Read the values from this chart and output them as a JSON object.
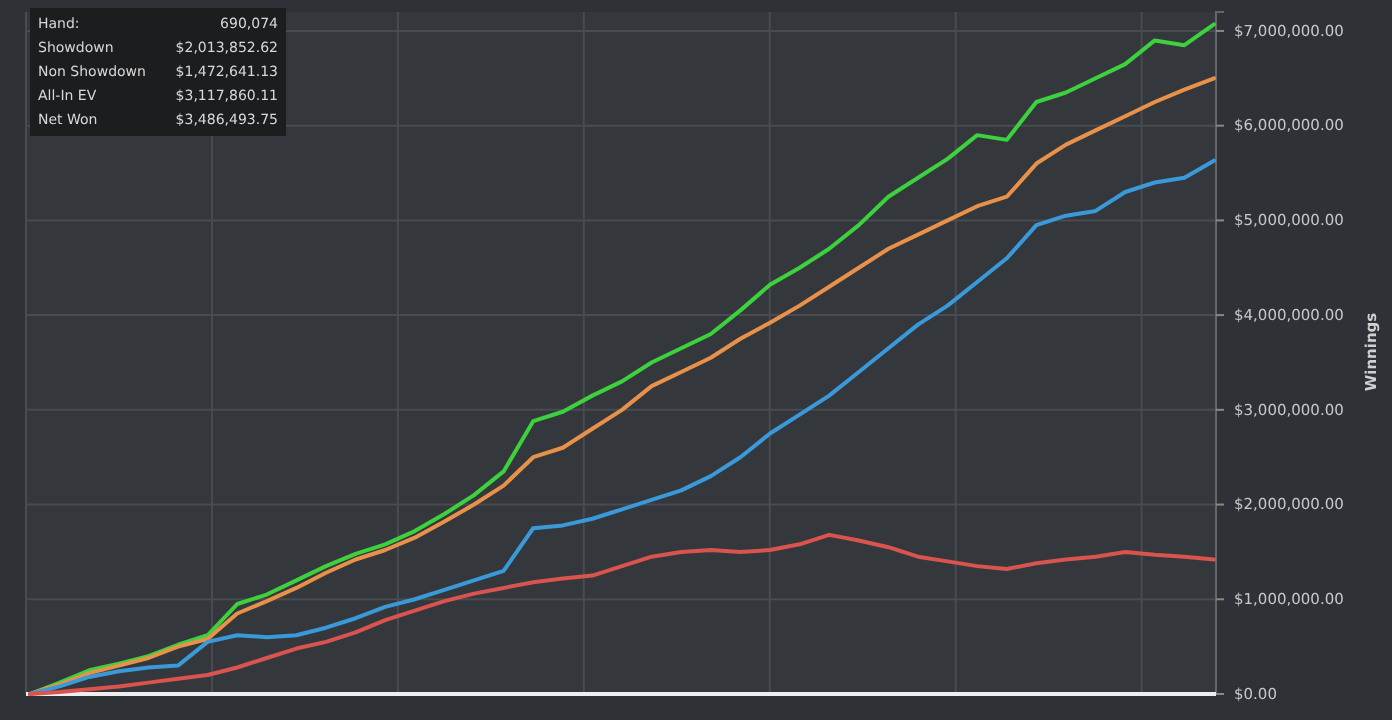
{
  "chart_data": {
    "type": "line",
    "ylabel": "Winnings",
    "grid": true,
    "categories": [
      null,
      null,
      null,
      null,
      null,
      null,
      null,
      null,
      null,
      null,
      null,
      null,
      null,
      null,
      null,
      null,
      null,
      null,
      null,
      null,
      null,
      null,
      null,
      null,
      null,
      null,
      null,
      null,
      null,
      null,
      null,
      null,
      null,
      null,
      null,
      null,
      null,
      null,
      null,
      null,
      null
    ],
    "ylim": [
      0,
      7200000
    ],
    "yticks": [
      {
        "value": 0,
        "label": "$0.00"
      },
      {
        "value": 1000000,
        "label": "$1,000,000.00"
      },
      {
        "value": 2000000,
        "label": "$2,000,000.00"
      },
      {
        "value": 3000000,
        "label": "$3,000,000.00"
      },
      {
        "value": 4000000,
        "label": "$4,000,000.00"
      },
      {
        "value": 5000000,
        "label": "$5,000,000.00"
      },
      {
        "value": 6000000,
        "label": "$6,000,000.00"
      },
      {
        "value": 7000000,
        "label": "$7,000,000.00"
      }
    ],
    "annotations": [
      "Hand:",
      "690,074",
      "Showdown",
      "$2,013,852.62",
      "Non Showdown",
      "$1,472,641.13",
      "All-In EV",
      "$3,117,860.11",
      "Net Won",
      "$3,486,493.75"
    ],
    "series": [
      {
        "color": "#3dd13d",
        "values": [
          0,
          120000,
          250000,
          320000,
          400000,
          520000,
          620000,
          950000,
          1050000,
          1200000,
          1350000,
          1480000,
          1580000,
          1720000,
          1900000,
          2100000,
          2350000,
          2880000,
          2980000,
          3150000,
          3300000,
          3500000,
          3650000,
          3800000,
          4050000,
          4320000,
          4500000,
          4700000,
          4950000,
          5250000,
          5450000,
          5650000,
          5900000,
          5850000,
          6250000,
          6350000,
          6500000,
          6650000,
          6900000,
          6850000,
          7070000
        ]
      },
      {
        "color": "#e8914a",
        "values": [
          0,
          100000,
          220000,
          300000,
          380000,
          500000,
          580000,
          850000,
          980000,
          1120000,
          1280000,
          1420000,
          1520000,
          1650000,
          1820000,
          2000000,
          2200000,
          2500000,
          2600000,
          2800000,
          3000000,
          3250000,
          3400000,
          3550000,
          3750000,
          3920000,
          4100000,
          4300000,
          4500000,
          4700000,
          4850000,
          5000000,
          5150000,
          5250000,
          5600000,
          5800000,
          5950000,
          6100000,
          6250000,
          6380000,
          6500000
        ]
      },
      {
        "color": "#3a9ad9",
        "values": [
          0,
          80000,
          180000,
          240000,
          280000,
          300000,
          550000,
          620000,
          600000,
          620000,
          700000,
          800000,
          920000,
          1000000,
          1100000,
          1200000,
          1300000,
          1750000,
          1780000,
          1850000,
          1950000,
          2050000,
          2150000,
          2300000,
          2500000,
          2750000,
          2950000,
          3150000,
          3400000,
          3650000,
          3900000,
          4100000,
          4350000,
          4600000,
          4950000,
          5050000,
          5100000,
          5300000,
          5400000,
          5450000,
          5630000
        ]
      },
      {
        "color": "#d9534f",
        "values": [
          0,
          20000,
          50000,
          80000,
          120000,
          160000,
          200000,
          280000,
          380000,
          480000,
          550000,
          650000,
          780000,
          880000,
          980000,
          1060000,
          1120000,
          1180000,
          1220000,
          1250000,
          1350000,
          1450000,
          1500000,
          1520000,
          1500000,
          1520000,
          1580000,
          1680000,
          1620000,
          1550000,
          1450000,
          1400000,
          1350000,
          1320000,
          1380000,
          1420000,
          1450000,
          1500000,
          1470000,
          1450000,
          1420000
        ]
      }
    ]
  }
}
